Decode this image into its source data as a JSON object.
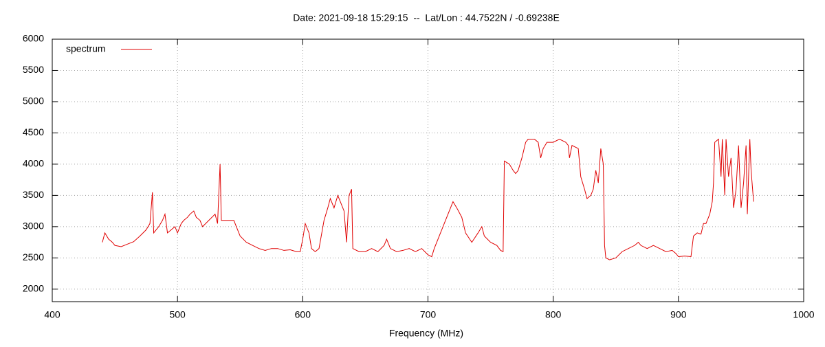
{
  "chart_data": {
    "type": "line",
    "title": "Date: 2021-09-18 15:29:15  --  Lat/Lon : 44.7522N / -0.69238E",
    "x_label": "Frequency (MHz)",
    "x": [
      440,
      442,
      445,
      448,
      450,
      455,
      460,
      465,
      470,
      475,
      478,
      480,
      481,
      485,
      488,
      490,
      492,
      495,
      498,
      500,
      503,
      505,
      508,
      510,
      513,
      515,
      518,
      520,
      525,
      530,
      532,
      534,
      535,
      540,
      545,
      548,
      550,
      555,
      560,
      565,
      570,
      575,
      580,
      585,
      590,
      595,
      598,
      600,
      602,
      605,
      607,
      610,
      613,
      617,
      620,
      622,
      625,
      628,
      630,
      633,
      635,
      637,
      639,
      640,
      645,
      650,
      655,
      660,
      665,
      667,
      670,
      675,
      680,
      685,
      690,
      695,
      700,
      703,
      705,
      710,
      715,
      718,
      720,
      723,
      727,
      730,
      735,
      740,
      743,
      745,
      750,
      755,
      758,
      760,
      761,
      765,
      768,
      770,
      772,
      775,
      778,
      780,
      785,
      788,
      790,
      792,
      795,
      800,
      805,
      810,
      812,
      813,
      815,
      820,
      822,
      825,
      827,
      830,
      832,
      834,
      836,
      838,
      840,
      841,
      842,
      845,
      850,
      855,
      860,
      865,
      868,
      870,
      875,
      880,
      885,
      890,
      895,
      898,
      900,
      905,
      910,
      912,
      915,
      918,
      920,
      922,
      925,
      927,
      928,
      929,
      932,
      934,
      935,
      937,
      938,
      940,
      942,
      944,
      946,
      948,
      950,
      952,
      954,
      955,
      957,
      958,
      960
    ],
    "series": [
      {
        "name": "spectrum",
        "color": "#e00000",
        "values": [
          2750,
          2900,
          2800,
          2750,
          2700,
          2680,
          2720,
          2760,
          2850,
          2950,
          3050,
          3550,
          2900,
          3000,
          3100,
          3200,
          2900,
          2950,
          3000,
          2900,
          3050,
          3100,
          3150,
          3200,
          3250,
          3150,
          3100,
          3000,
          3100,
          3200,
          3050,
          4000,
          3100,
          3100,
          3100,
          2950,
          2850,
          2750,
          2700,
          2650,
          2620,
          2650,
          2650,
          2620,
          2630,
          2600,
          2600,
          2800,
          3050,
          2900,
          2650,
          2600,
          2650,
          3100,
          3300,
          3450,
          3300,
          3500,
          3400,
          3250,
          2750,
          3500,
          3600,
          2650,
          2600,
          2600,
          2650,
          2600,
          2700,
          2800,
          2650,
          2600,
          2620,
          2650,
          2600,
          2650,
          2550,
          2520,
          2650,
          2900,
          3150,
          3300,
          3400,
          3300,
          3150,
          2900,
          2750,
          2900,
          3000,
          2850,
          2750,
          2700,
          2620,
          2600,
          4050,
          4000,
          3900,
          3850,
          3900,
          4100,
          4350,
          4400,
          4400,
          4350,
          4100,
          4250,
          4350,
          4350,
          4400,
          4350,
          4300,
          4100,
          4300,
          4250,
          3800,
          3600,
          3450,
          3500,
          3600,
          3900,
          3700,
          4250,
          4000,
          2700,
          2500,
          2470,
          2500,
          2600,
          2650,
          2700,
          2750,
          2700,
          2650,
          2700,
          2650,
          2600,
          2620,
          2570,
          2520,
          2530,
          2520,
          2850,
          2900,
          2880,
          3050,
          3050,
          3200,
          3400,
          3700,
          4350,
          4400,
          3800,
          4400,
          3500,
          4400,
          3800,
          4100,
          3300,
          3600,
          4300,
          3300,
          3700,
          4300,
          3200,
          4400,
          3900,
          3400
        ]
      }
    ],
    "xlim": [
      400,
      1000
    ],
    "xticks": [
      400,
      500,
      600,
      700,
      800,
      900,
      1000
    ],
    "ylim": [
      1800,
      6000
    ],
    "yticks": [
      2000,
      2500,
      3000,
      3500,
      4000,
      4500,
      5000,
      5500,
      6000
    ],
    "grid": true,
    "legend": "top-left"
  }
}
